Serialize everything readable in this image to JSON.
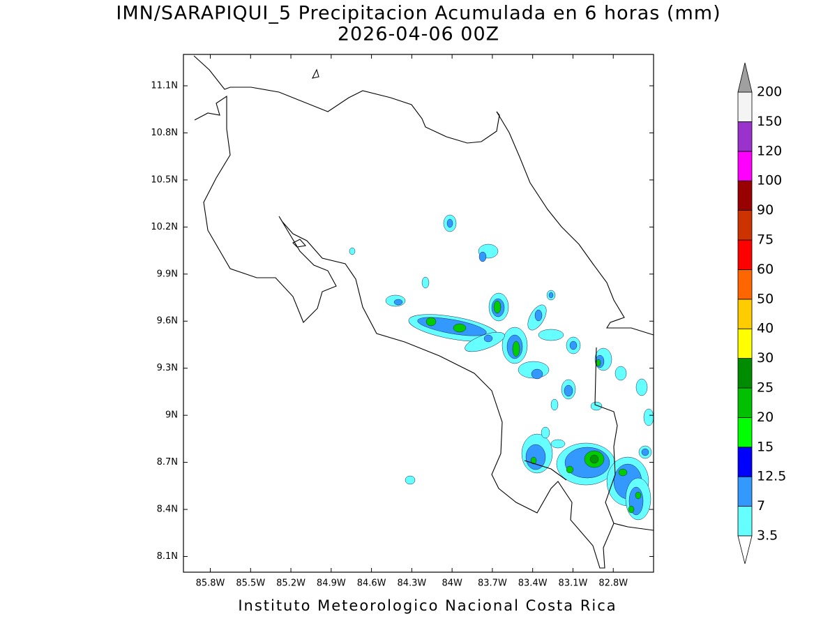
{
  "title": "IMN/SARAPIQUI_5 Precipitacion Acumulada en 6 horas (mm)",
  "subtitle": "2026-04-06 00Z",
  "footer": "Instituto Meteorologico Nacional Costa Rica",
  "map": {
    "xlim": [
      -86.0,
      -82.5
    ],
    "ylim": [
      8.0,
      11.3
    ],
    "xticks": [
      {
        "value": -85.8,
        "label": "85.8W"
      },
      {
        "value": -85.5,
        "label": "85.5W"
      },
      {
        "value": -85.2,
        "label": "85.2W"
      },
      {
        "value": -84.9,
        "label": "84.9W"
      },
      {
        "value": -84.6,
        "label": "84.6W"
      },
      {
        "value": -84.3,
        "label": "84.3W"
      },
      {
        "value": -84.0,
        "label": "84W"
      },
      {
        "value": -83.7,
        "label": "83.7W"
      },
      {
        "value": -83.4,
        "label": "83.4W"
      },
      {
        "value": -83.1,
        "label": "83.1W"
      },
      {
        "value": -82.8,
        "label": "82.8W"
      }
    ],
    "yticks": [
      {
        "value": 11.1,
        "label": "11.1N"
      },
      {
        "value": 10.8,
        "label": "10.8N"
      },
      {
        "value": 10.5,
        "label": "10.5N"
      },
      {
        "value": 10.2,
        "label": "10.2N"
      },
      {
        "value": 9.9,
        "label": "9.9N"
      },
      {
        "value": 9.6,
        "label": "9.6N"
      },
      {
        "value": 9.3,
        "label": "9.3N"
      },
      {
        "value": 9.0,
        "label": "9N"
      },
      {
        "value": 8.7,
        "label": "8.7N"
      },
      {
        "value": 8.4,
        "label": "8.4N"
      },
      {
        "value": 8.1,
        "label": "8.1N"
      }
    ],
    "grid": true
  },
  "colorbar": {
    "levels": [
      3.5,
      7,
      12.5,
      15,
      20,
      25,
      30,
      40,
      50,
      60,
      75,
      90,
      100,
      120,
      150,
      200
    ],
    "colors": [
      "#66ffff",
      "#3399ff",
      "#0000ff",
      "#00ff00",
      "#00c000",
      "#008c00",
      "#ffff00",
      "#ffcc00",
      "#ff6600",
      "#ff0000",
      "#cc3300",
      "#990000",
      "#ff00ff",
      "#9933cc",
      "#f4f4f4"
    ],
    "under_color": "#ffffff",
    "over_color": "#a0a0a0"
  }
}
